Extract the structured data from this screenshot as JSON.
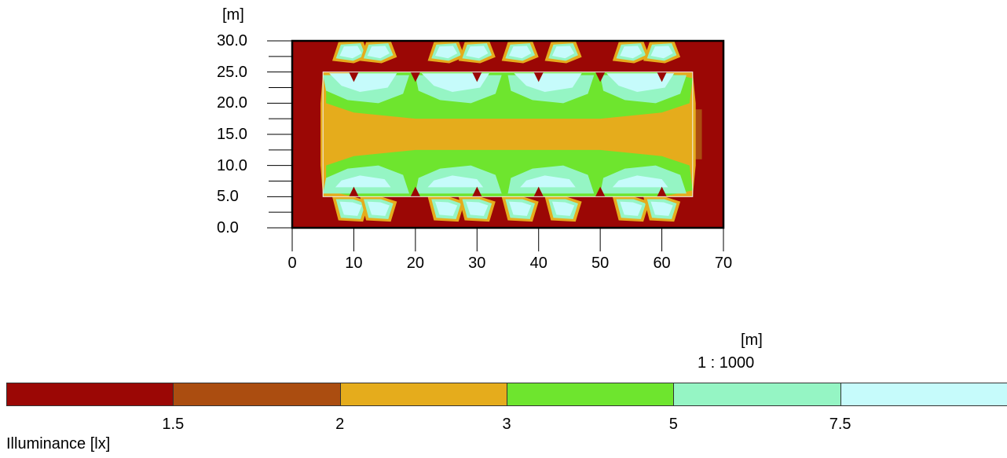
{
  "chart_data": {
    "type": "heatmap",
    "title": "",
    "xlabel": "",
    "ylabel": "[m]",
    "xlim": [
      0,
      70
    ],
    "ylim": [
      0,
      30
    ],
    "x_ticks": [
      "0",
      "10",
      "20",
      "30",
      "40",
      "50",
      "60",
      "70"
    ],
    "y_ticks": [
      "0.0",
      "5.0",
      "10.0",
      "15.0",
      "20.0",
      "25.0",
      "30.0"
    ],
    "area_rect": {
      "x": [
        5,
        65
      ],
      "y": [
        5,
        25
      ]
    },
    "scale_unit": "[m]",
    "scale_ratio": "1 : 1000",
    "colorbar_label": "Illuminance [lx]",
    "colorbar_thresholds": [
      "1.5",
      "2",
      "3",
      "5",
      "7.5"
    ],
    "colors": [
      "#9b0705",
      "#ab4d10",
      "#e5ac1c",
      "#6ee52e",
      "#95f5c4",
      "#c6fbfb"
    ],
    "luminaire_patches_top_y": 28,
    "luminaire_patches_bottom_y": 3,
    "luminaire_x": [
      9.5,
      14,
      25,
      30,
      37,
      44,
      55,
      60
    ],
    "pole_x": [
      10,
      20,
      30,
      40,
      50,
      60
    ],
    "levels_description": [
      "<1.5",
      "1.5-2",
      "2-3",
      "3-5",
      "5-7.5",
      ">7.5"
    ]
  }
}
